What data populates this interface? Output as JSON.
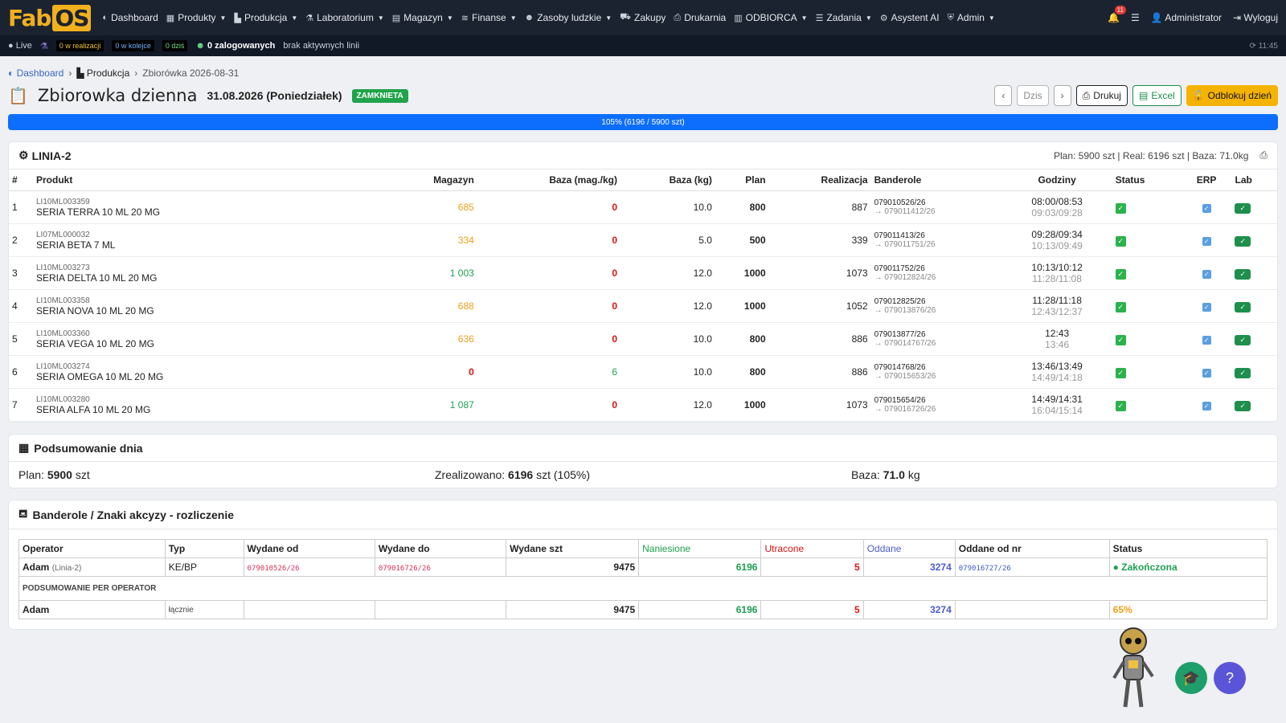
{
  "brand": {
    "logo_a": "Fab",
    "logo_b": "OS"
  },
  "nav": {
    "items": [
      {
        "label": "Dashboard",
        "icon": "dashboard-icon",
        "glyph": "◐",
        "caret": false
      },
      {
        "label": "Produkty",
        "icon": "boxes-icon",
        "glyph": "▦",
        "caret": true
      },
      {
        "label": "Produkcja",
        "icon": "factory-icon",
        "glyph": "▙",
        "caret": true
      },
      {
        "label": "Laboratorium",
        "icon": "flask-icon",
        "glyph": "⚗",
        "caret": true
      },
      {
        "label": "Magazyn",
        "icon": "warehouse-icon",
        "glyph": "▤",
        "caret": true
      },
      {
        "label": "Finanse",
        "icon": "money-icon",
        "glyph": "≋",
        "caret": true
      },
      {
        "label": "Zasoby ludzkie",
        "icon": "users-icon",
        "glyph": "☻",
        "caret": true
      },
      {
        "label": "Zakupy",
        "icon": "truck-icon",
        "glyph": "⛟",
        "caret": false
      },
      {
        "label": "Drukarnia",
        "icon": "printer-icon",
        "glyph": "⎙",
        "caret": false
      },
      {
        "label": "ODBIORCA",
        "icon": "store-icon",
        "glyph": "▥",
        "caret": true
      },
      {
        "label": "Zadania",
        "icon": "tasks-icon",
        "glyph": "☰",
        "caret": true
      },
      {
        "label": "Asystent AI",
        "icon": "robot-icon",
        "glyph": "⚙",
        "caret": false
      },
      {
        "label": "Admin",
        "icon": "shield-icon",
        "glyph": "⛨",
        "caret": true
      }
    ],
    "notif_count": "11",
    "user": "Administrator",
    "logout": "Wyloguj"
  },
  "statusbar": {
    "live": "Live",
    "in_progress": "0 w realizacji",
    "queued": "0 w kolejce",
    "today": "0 dziś",
    "logged": "0 zalogowanych",
    "lines": "brak aktywnych linii",
    "time": "11:45"
  },
  "breadcrumb": {
    "home": "Dashboard",
    "section": "Produkcja",
    "current": "Zbiorówka 2026-08-31"
  },
  "page": {
    "title": "Zbiorowka dzienna",
    "date": "31.08.2026 (Poniedziałek)",
    "status": "ZAMKNIETA",
    "btn_today": "Dzis",
    "btn_print": "Drukuj",
    "btn_excel": "Excel",
    "btn_unlock": "Odblokuj dzień"
  },
  "progress": {
    "label": "105% (6196 / 5900 szt)",
    "percent": 105
  },
  "line": {
    "name": "LINIA-2",
    "summary": "Plan: 5900 szt | Real: 6196 szt | Baza: 71.0kg",
    "columns": [
      "#",
      "Produkt",
      "Magazyn",
      "Baza (mag./kg)",
      "Baza (kg)",
      "Plan",
      "Realizacja",
      "Banderole",
      "Godziny",
      "Status",
      "ERP",
      "Lab"
    ],
    "rows": [
      {
        "n": "1",
        "code": "LI10ML003359",
        "name": "SERIA TERRA 10 ML 20 MG",
        "mag": "685",
        "magc": "orange",
        "baza": "0",
        "bazac": "red",
        "kg": "10.0",
        "plan": "800",
        "real": "887",
        "b1": "079010526/26",
        "b2": "→ 079011412/26",
        "h1": "08:00/08:53",
        "h2": "09:03/09:28"
      },
      {
        "n": "2",
        "code": "LI07ML000032",
        "name": "SERIA BETA 7 ML",
        "mag": "334",
        "magc": "orange",
        "baza": "0",
        "bazac": "red",
        "kg": "5.0",
        "plan": "500",
        "real": "339",
        "b1": "079011413/26",
        "b2": "→ 079011751/26",
        "h1": "09:28/09:34",
        "h2": "10:13/09:49"
      },
      {
        "n": "3",
        "code": "LI10ML003273",
        "name": "SERIA DELTA 10 ML 20 MG",
        "mag": "1 003",
        "magc": "green",
        "baza": "0",
        "bazac": "red",
        "kg": "12.0",
        "plan": "1000",
        "real": "1073",
        "b1": "079011752/26",
        "b2": "→ 079012824/26",
        "h1": "10:13/10:12",
        "h2": "11:28/11:08"
      },
      {
        "n": "4",
        "code": "LI10ML003358",
        "name": "SERIA NOVA 10 ML 20 MG",
        "mag": "688",
        "magc": "orange",
        "baza": "0",
        "bazac": "red",
        "kg": "12.0",
        "plan": "1000",
        "real": "1052",
        "b1": "079012825/26",
        "b2": "→ 079013876/26",
        "h1": "11:28/11:18",
        "h2": "12:43/12:37"
      },
      {
        "n": "5",
        "code": "LI10ML003360",
        "name": "SERIA VEGA 10 ML 20 MG",
        "mag": "636",
        "magc": "orange",
        "baza": "0",
        "bazac": "red",
        "kg": "10.0",
        "plan": "800",
        "real": "886",
        "b1": "079013877/26",
        "b2": "→ 079014767/26",
        "h1": "12:43",
        "h2": "13:46"
      },
      {
        "n": "6",
        "code": "LI10ML003274",
        "name": "SERIA OMEGA 10 ML 20 MG",
        "mag": "0",
        "magc": "red",
        "baza": "6",
        "bazac": "green",
        "kg": "10.0",
        "plan": "800",
        "real": "886",
        "b1": "079014768/26",
        "b2": "→ 079015653/26",
        "h1": "13:46/13:49",
        "h2": "14:49/14:18"
      },
      {
        "n": "7",
        "code": "LI10ML003280",
        "name": "SERIA ALFA 10 ML 20 MG",
        "mag": "1 087",
        "magc": "green",
        "baza": "0",
        "bazac": "red",
        "kg": "12.0",
        "plan": "1000",
        "real": "1073",
        "b1": "079015654/26",
        "b2": "→ 079016726/26",
        "h1": "14:49/14:31",
        "h2": "16:04/15:14"
      }
    ]
  },
  "summary": {
    "title": "Podsumowanie dnia",
    "plan_label": "Plan:",
    "plan_val": "5900",
    "plan_unit": "szt",
    "real_label": "Zrealizowano:",
    "real_val": "6196",
    "real_unit": "szt (105%)",
    "baza_label": "Baza:",
    "baza_val": "71.0",
    "baza_unit": "kg"
  },
  "banderole": {
    "title": "Banderole / Znaki akcyzy - rozliczenie",
    "columns": [
      "Operator",
      "Typ",
      "Wydane od",
      "Wydane do",
      "Wydane szt",
      "Naniesione",
      "Utracone",
      "Oddane",
      "Oddane od nr",
      "Status"
    ],
    "row": {
      "op": "Adam",
      "line": "(Linia-2)",
      "typ": "KE/BP",
      "od": "079010526/26",
      "do": "079016726/26",
      "szt": "9475",
      "nan": "6196",
      "utr": "5",
      "odd": "3274",
      "oddnr": "079016727/26",
      "status": "Zakończona"
    },
    "per_op_label": "PODSUMOWANIE PER OPERATOR",
    "total": {
      "op": "Adam",
      "typ": "łącznie",
      "szt": "9475",
      "nan": "6196",
      "utr": "5",
      "odd": "3274",
      "pct": "65%"
    }
  }
}
